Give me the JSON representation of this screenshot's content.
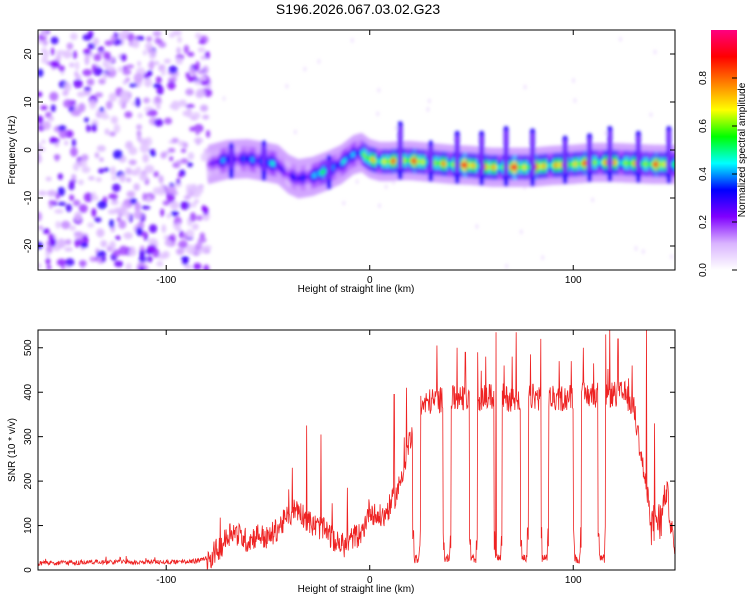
{
  "title": "S196.2026.067.03.02.G23",
  "chart_data": [
    {
      "type": "heatmap",
      "title": "S196.2026.067.03.02.G23",
      "xlabel": "Height of straight line (km)",
      "ylabel": "Frequency (Hz)",
      "xlim": [
        -163,
        150
      ],
      "ylim": [
        -25,
        25
      ],
      "xticks": [
        -100,
        0,
        100
      ],
      "xtick_labels": [
        "-100",
        "0",
        "100"
      ],
      "yticks": [
        -20,
        -10,
        0,
        10,
        20
      ],
      "ytick_labels": [
        "-20",
        "-10",
        "0",
        "10",
        "20"
      ],
      "colorbar": {
        "label": "Normalized spectral amplitude",
        "range": [
          0.0,
          1.0
        ],
        "ticks": [
          0.0,
          0.2,
          0.4,
          0.6,
          0.8
        ],
        "tick_labels": [
          "0.0",
          "0.2",
          "0.4",
          "0.6",
          "0.8"
        ],
        "colormap": [
          "#ffffff",
          "#d9b3ff",
          "#8000ff",
          "#0000ff",
          "#00ffff",
          "#00ff00",
          "#ffff00",
          "#ff8000",
          "#ff0000",
          "#ff0080"
        ]
      },
      "noise_region_x": [
        -163,
        -79
      ],
      "ridge": {
        "x": [
          -79,
          -70,
          -60,
          -52,
          -45,
          -40,
          -35,
          -28,
          -20,
          -14,
          -8,
          -4,
          0,
          5,
          10,
          15,
          20,
          30,
          40,
          50,
          60,
          70,
          80,
          90,
          100,
          110,
          120,
          130,
          140,
          150
        ],
        "freq": [
          -3,
          -2,
          -1.8,
          -2.4,
          -3,
          -5,
          -6,
          -5.5,
          -4.2,
          -3,
          -1,
          -0.5,
          -1.8,
          -2.4,
          -2.4,
          -2.2,
          -2.2,
          -2.6,
          -3,
          -3.2,
          -3.6,
          -3.6,
          -3.6,
          -3.2,
          -3.0,
          -2.6,
          -2.6,
          -2.8,
          -3,
          -3
        ],
        "amp": [
          0.3,
          0.45,
          0.4,
          0.55,
          0.45,
          0.35,
          0.35,
          0.5,
          0.6,
          0.45,
          0.55,
          0.6,
          0.75,
          0.85,
          0.85,
          0.8,
          0.95,
          0.7,
          0.85,
          0.95,
          0.8,
          0.95,
          0.9,
          0.85,
          0.95,
          0.8,
          0.85,
          0.75,
          0.9,
          0.75
        ]
      },
      "spikes": {
        "x": [
          -68,
          -52,
          -20,
          15,
          30,
          43,
          55,
          67,
          80,
          96,
          108,
          118,
          132,
          147
        ],
        "top": [
          1.5,
          2,
          -1,
          6,
          2,
          4,
          4,
          5,
          4.5,
          3,
          3.5,
          5,
          4,
          5
        ]
      }
    },
    {
      "type": "line",
      "title": "",
      "xlabel": "Height of straight line (km)",
      "ylabel": "SNR (10 * v/v)",
      "xlim": [
        -163,
        150
      ],
      "ylim": [
        0,
        540
      ],
      "xticks": [
        -100,
        0,
        100
      ],
      "xtick_labels": [
        "-100",
        "0",
        "100"
      ],
      "yticks": [
        0,
        100,
        200,
        300,
        400,
        500
      ],
      "ytick_labels": [
        "0",
        "100",
        "200",
        "300",
        "400",
        "500"
      ],
      "color": "#ee2222",
      "series": [
        {
          "name": "SNR",
          "x": [
            -163,
            -130,
            -100,
            -85,
            -78,
            -72,
            -68,
            -60,
            -55,
            -50,
            -45,
            -40,
            -36,
            -32,
            -28,
            -24,
            -20,
            -16,
            -12,
            -8,
            -4,
            0,
            3,
            7,
            10,
            14,
            16,
            18,
            20,
            22,
            30,
            40,
            50,
            60,
            70,
            80,
            90,
            100,
            110,
            120,
            126,
            130,
            134,
            138,
            142,
            146,
            150
          ],
          "trend": [
            15,
            18,
            18,
            20,
            30,
            60,
            90,
            65,
            80,
            70,
            95,
            120,
            140,
            120,
            100,
            95,
            80,
            60,
            55,
            75,
            80,
            140,
            120,
            120,
            145,
            180,
            220,
            260,
            300,
            360,
            380,
            385,
            385,
            390,
            385,
            390,
            385,
            390,
            395,
            395,
            395,
            360,
            240,
            120,
            120,
            180,
            30
          ]
        }
      ],
      "dropouts": [
        23,
        38,
        51,
        63,
        76,
        86,
        102,
        114
      ],
      "spikes": {
        "x": [
          -38,
          -31,
          -24,
          -11,
          12,
          18,
          33,
          43,
          47,
          53,
          57,
          62,
          66,
          70,
          72,
          79,
          84,
          93,
          99,
          105,
          110,
          116,
          118,
          122,
          129,
          136,
          140
        ],
        "top": [
          230,
          325,
          305,
          185,
          395,
          410,
          505,
          500,
          490,
          490,
          480,
          535,
          460,
          480,
          535,
          485,
          520,
          470,
          470,
          500,
          465,
          530,
          540,
          520,
          460,
          530,
          330
        ]
      }
    }
  ]
}
